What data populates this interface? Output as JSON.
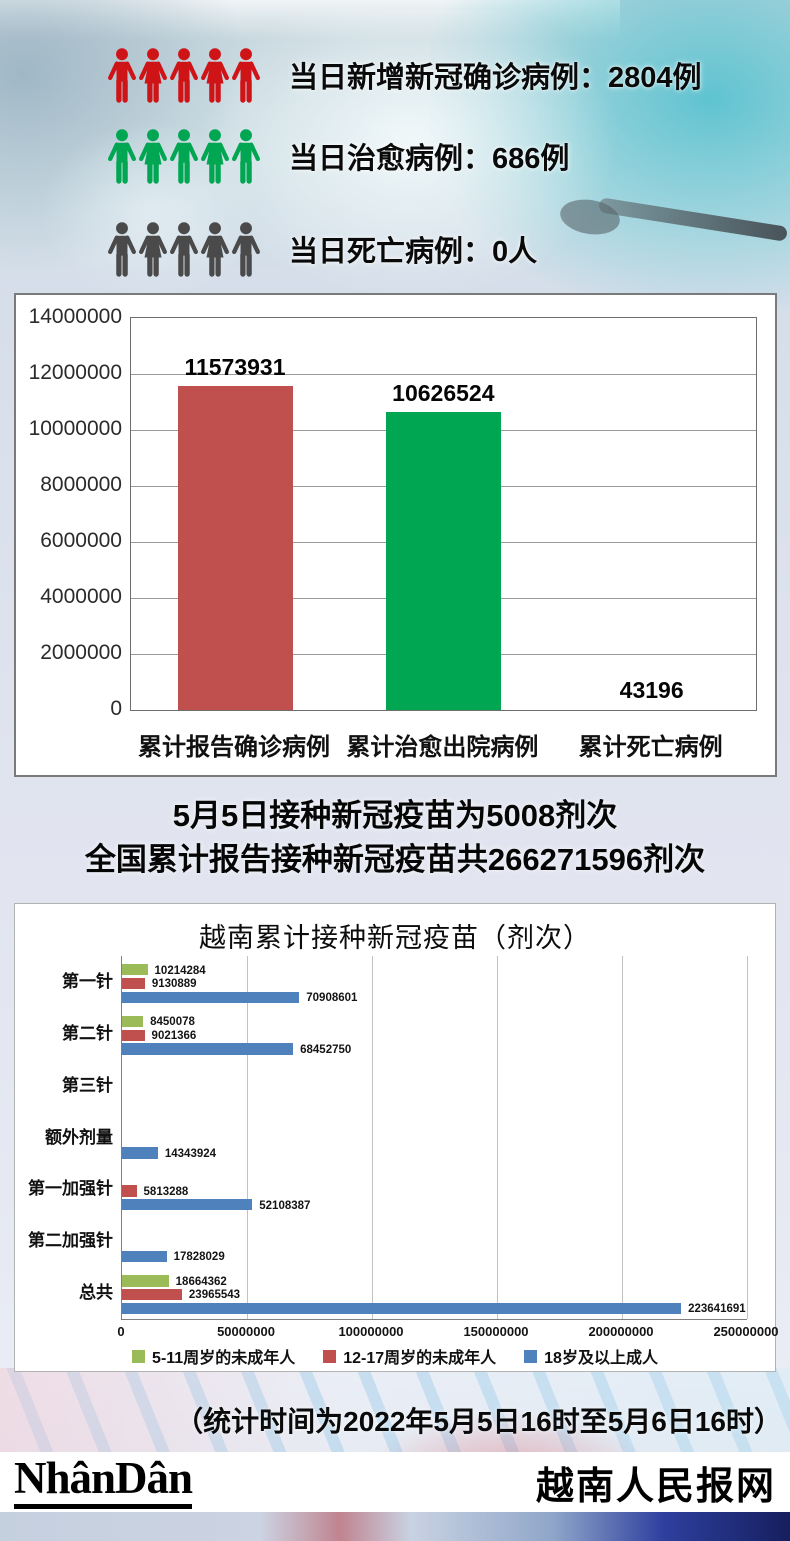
{
  "daily_stats": {
    "items": [
      {
        "label": "当日新增新冠确诊病例：2804例",
        "color": "#cf1418",
        "icon": "people-group-red"
      },
      {
        "label": "当日治愈病例：686例",
        "color": "#00a651",
        "icon": "people-group-green"
      },
      {
        "label": "当日死亡病例：0人",
        "color": "#4a4a4a",
        "icon": "people-group-gray"
      }
    ]
  },
  "chart_data": [
    {
      "type": "bar",
      "categories": [
        "累计报告确诊病例",
        "累计治愈出院病例",
        "累计死亡病例"
      ],
      "values": [
        11573931,
        10626524,
        43196
      ],
      "data_labels": [
        "11573931",
        "10626524",
        "43196"
      ],
      "bar_colors": [
        "#c0504d",
        "#00a651",
        "#c0504d"
      ],
      "ylim": [
        0,
        14000000
      ],
      "ytick_interval": 2000000,
      "yticks": [
        0,
        2000000,
        4000000,
        6000000,
        8000000,
        10000000,
        12000000,
        14000000
      ],
      "grid": true,
      "legend": false
    },
    {
      "type": "bar-horizontal",
      "title": "越南累计接种新冠疫苗（剂次）",
      "categories": [
        "第一针",
        "第二针",
        "第三针",
        "额外剂量",
        "第一加强针",
        "第二加强针",
        "总共"
      ],
      "series": [
        {
          "name": "5-11周岁的未成年人",
          "color": "#9bbb59",
          "values": [
            10214284,
            8450078,
            null,
            null,
            null,
            null,
            18664362
          ]
        },
        {
          "name": "12-17周岁的未成年人",
          "color": "#c0504d",
          "values": [
            9130889,
            9021366,
            null,
            null,
            5813288,
            null,
            23965543
          ]
        },
        {
          "name": "18岁及以上成人",
          "color": "#4f81bd",
          "values": [
            70908601,
            68452750,
            null,
            14343924,
            52108387,
            17828029,
            223641691
          ]
        }
      ],
      "xlim": [
        0,
        250000000
      ],
      "xticks": [
        0,
        50000000,
        100000000,
        150000000,
        200000000,
        250000000
      ],
      "grid": true,
      "legend_position": "bottom"
    }
  ],
  "vaccine_summary": {
    "line1": "5月5日接种新冠疫苗为5008剂次",
    "line2": "全国累计报告接种新冠疫苗共266271596剂次"
  },
  "footnote": "（统计时间为2022年5月5日16时至5月6日16时）",
  "footer": {
    "logo_text": "NhânDân",
    "site_name": "越南人民报网",
    "brand_color": "#e3191f"
  }
}
